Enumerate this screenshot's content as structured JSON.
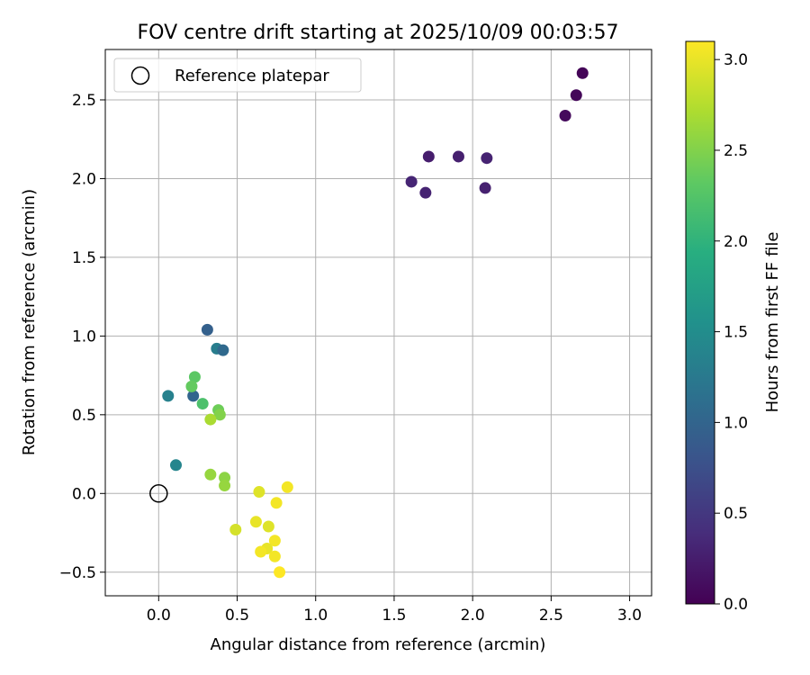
{
  "chart_data": {
    "type": "scatter",
    "title": "FOV centre drift starting at 2025/10/09 00:03:57",
    "xlabel": "Angular distance from reference (arcmin)",
    "ylabel": "Rotation from reference (arcmin)",
    "colorbar_label": "Hours from first FF file",
    "colormap": "viridis",
    "xlim": [
      -0.34,
      3.14
    ],
    "ylim": [
      -0.65,
      2.82
    ],
    "color_range": [
      0.0,
      3.1
    ],
    "x_ticks": [
      "0.0",
      "0.5",
      "1.0",
      "1.5",
      "2.0",
      "2.5",
      "3.0"
    ],
    "y_ticks": [
      "−0.5",
      "0.0",
      "0.5",
      "1.0",
      "1.5",
      "2.0",
      "2.5"
    ],
    "colorbar_ticks": [
      "0.0",
      "0.5",
      "1.0",
      "1.5",
      "2.0",
      "2.5",
      "3.0"
    ],
    "grid": true,
    "legend_position": "upper-left",
    "legend": [
      {
        "label": "Reference platepar",
        "marker": "open-circle",
        "x": 0.0,
        "y": 0.0
      }
    ],
    "points": [
      {
        "x": 2.7,
        "y": 2.67,
        "c": 0.03
      },
      {
        "x": 2.66,
        "y": 2.53,
        "c": 0.05
      },
      {
        "x": 2.59,
        "y": 2.4,
        "c": 0.08
      },
      {
        "x": 1.72,
        "y": 2.14,
        "c": 0.25
      },
      {
        "x": 1.91,
        "y": 2.14,
        "c": 0.27
      },
      {
        "x": 2.09,
        "y": 2.13,
        "c": 0.3
      },
      {
        "x": 1.61,
        "y": 1.98,
        "c": 0.32
      },
      {
        "x": 1.7,
        "y": 1.91,
        "c": 0.3
      },
      {
        "x": 2.08,
        "y": 1.94,
        "c": 0.28
      },
      {
        "x": 0.31,
        "y": 1.04,
        "c": 0.95
      },
      {
        "x": 0.37,
        "y": 0.92,
        "c": 1.3
      },
      {
        "x": 0.41,
        "y": 0.91,
        "c": 1.05
      },
      {
        "x": 0.06,
        "y": 0.62,
        "c": 1.35
      },
      {
        "x": 0.22,
        "y": 0.62,
        "c": 1.0
      },
      {
        "x": 0.23,
        "y": 0.74,
        "c": 2.3
      },
      {
        "x": 0.21,
        "y": 0.68,
        "c": 2.35
      },
      {
        "x": 0.28,
        "y": 0.57,
        "c": 2.2
      },
      {
        "x": 0.38,
        "y": 0.53,
        "c": 2.4
      },
      {
        "x": 0.39,
        "y": 0.5,
        "c": 2.5
      },
      {
        "x": 0.33,
        "y": 0.47,
        "c": 2.7
      },
      {
        "x": 0.11,
        "y": 0.18,
        "c": 1.4
      },
      {
        "x": 0.33,
        "y": 0.12,
        "c": 2.6
      },
      {
        "x": 0.42,
        "y": 0.1,
        "c": 2.55
      },
      {
        "x": 0.42,
        "y": 0.05,
        "c": 2.6
      },
      {
        "x": 0.64,
        "y": 0.01,
        "c": 2.95
      },
      {
        "x": 0.82,
        "y": 0.04,
        "c": 3.05
      },
      {
        "x": 0.75,
        "y": -0.06,
        "c": 3.05
      },
      {
        "x": 0.62,
        "y": -0.18,
        "c": 3.0
      },
      {
        "x": 0.7,
        "y": -0.21,
        "c": 2.95
      },
      {
        "x": 0.49,
        "y": -0.23,
        "c": 2.9
      },
      {
        "x": 0.74,
        "y": -0.3,
        "c": 3.05
      },
      {
        "x": 0.69,
        "y": -0.35,
        "c": 3.0
      },
      {
        "x": 0.65,
        "y": -0.37,
        "c": 3.05
      },
      {
        "x": 0.74,
        "y": -0.4,
        "c": 3.05
      },
      {
        "x": 0.77,
        "y": -0.5,
        "c": 3.1
      }
    ]
  }
}
